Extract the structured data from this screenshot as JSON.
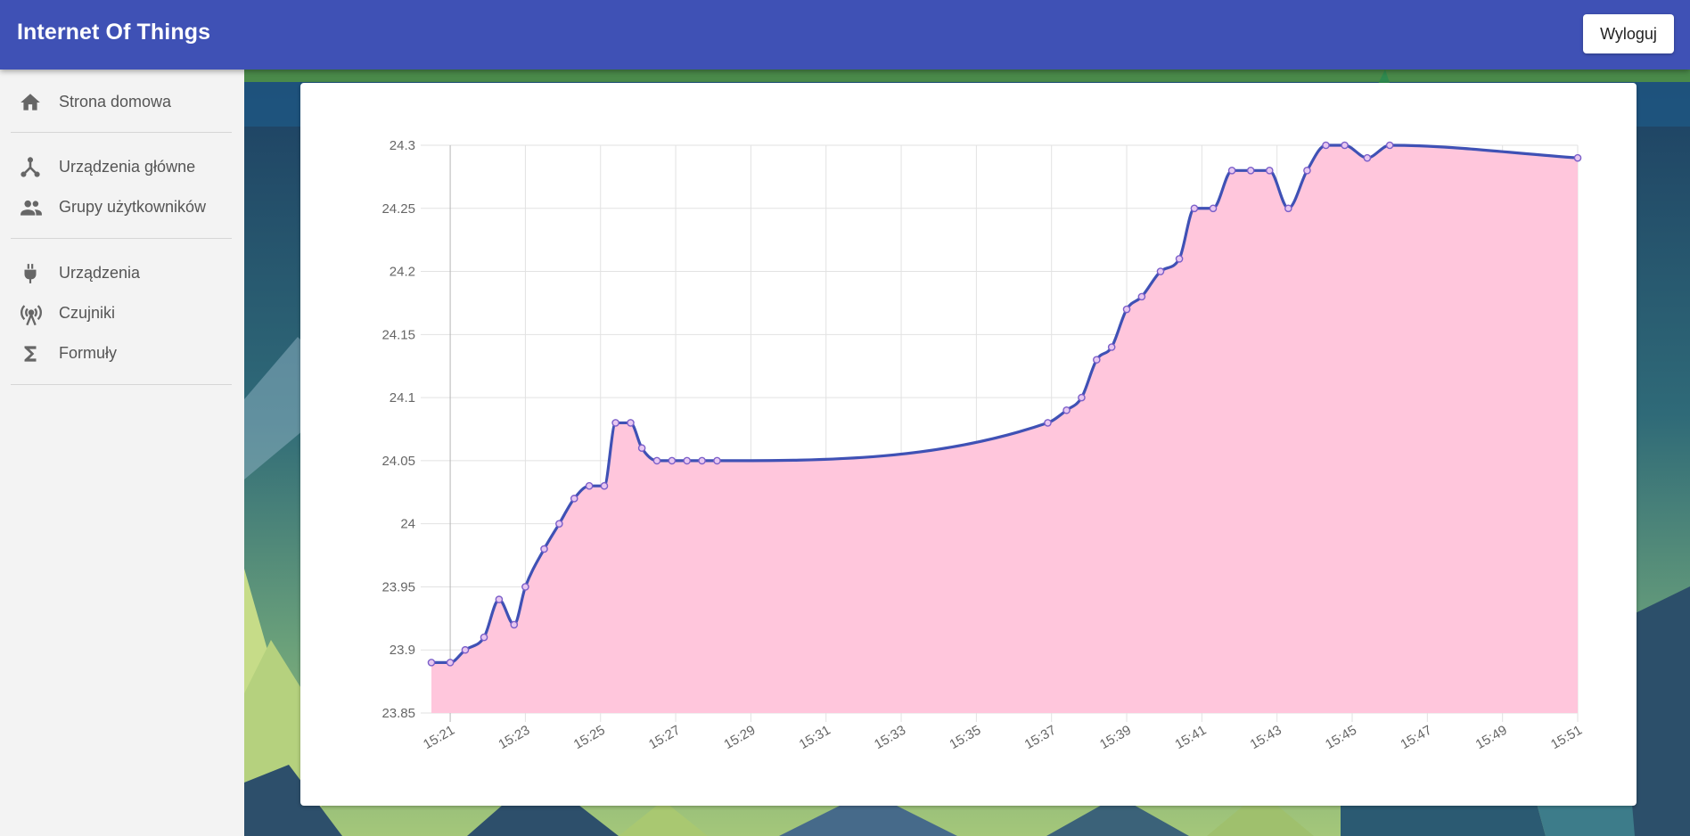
{
  "header": {
    "title": "Internet Of Things",
    "logout_label": "Wyloguj"
  },
  "sidebar": {
    "items": [
      {
        "label": "Strona domowa",
        "icon": "home-icon"
      },
      {
        "label": "Urządzenia główne",
        "icon": "hub-icon"
      },
      {
        "label": "Grupy użytkowników",
        "icon": "people-icon"
      },
      {
        "label": "Urządzenia",
        "icon": "plug-icon"
      },
      {
        "label": "Czujniki",
        "icon": "sensor-icon"
      },
      {
        "label": "Formuły",
        "icon": "sigma-icon"
      }
    ]
  },
  "colors": {
    "appbar": "#3f51b5",
    "line": "#3f51b5",
    "fill": "#ffc6dc",
    "point": "#7b5fc9"
  },
  "chart_data": {
    "type": "area",
    "x_time_start": "15:20:30",
    "x_time_end": "15:51",
    "ylim": [
      23.85,
      24.3
    ],
    "y_ticks": [
      "24.3",
      "24.25",
      "24.2",
      "24.15",
      "24.1",
      "24.05",
      "24",
      "23.95",
      "23.9",
      "23.85"
    ],
    "x_ticks": [
      "15:21",
      "15:23",
      "15:25",
      "15:27",
      "15:29",
      "15:31",
      "15:33",
      "15:35",
      "15:37",
      "15:39",
      "15:41",
      "15:43",
      "15:45",
      "15:47",
      "15:49",
      "15:51"
    ],
    "x": [
      "15:20:30",
      "15:21:00",
      "15:21:24",
      "15:21:54",
      "15:22:18",
      "15:22:42",
      "15:23:00",
      "15:23:30",
      "15:23:54",
      "15:24:18",
      "15:24:42",
      "15:25:06",
      "15:25:24",
      "15:25:48",
      "15:26:06",
      "15:26:30",
      "15:26:54",
      "15:27:18",
      "15:27:42",
      "15:28:06",
      "15:36:54",
      "15:37:24",
      "15:37:48",
      "15:38:12",
      "15:38:36",
      "15:39:00",
      "15:39:24",
      "15:39:54",
      "15:40:24",
      "15:40:48",
      "15:41:18",
      "15:41:48",
      "15:42:18",
      "15:42:48",
      "15:43:18",
      "15:43:48",
      "15:44:18",
      "15:44:48",
      "15:45:24",
      "15:46:00",
      "15:51:00"
    ],
    "values": [
      23.89,
      23.89,
      23.9,
      23.91,
      23.94,
      23.92,
      23.95,
      23.98,
      24.0,
      24.02,
      24.03,
      24.03,
      24.08,
      24.08,
      24.06,
      24.05,
      24.05,
      24.05,
      24.05,
      24.05,
      24.08,
      24.09,
      24.1,
      24.13,
      24.14,
      24.17,
      24.18,
      24.2,
      24.21,
      24.25,
      24.25,
      24.28,
      24.28,
      24.28,
      24.25,
      24.28,
      24.3,
      24.3,
      24.29,
      24.3,
      24.29
    ],
    "grid": true
  }
}
